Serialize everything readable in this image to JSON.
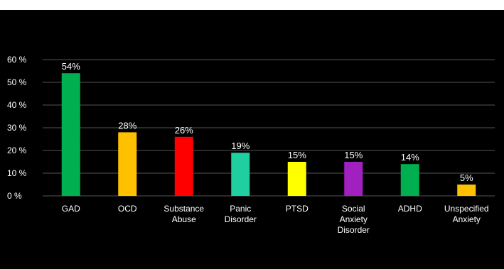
{
  "chart_data": {
    "type": "bar",
    "categories": [
      [
        "GAD"
      ],
      [
        "OCD"
      ],
      [
        "Substance",
        "Abuse"
      ],
      [
        "Panic",
        "Disorder"
      ],
      [
        "PTSD"
      ],
      [
        "Social",
        "Anxiety",
        "Disorder"
      ],
      [
        "ADHD"
      ],
      [
        "Unspecified",
        "Anxiety"
      ]
    ],
    "values": [
      54,
      28,
      26,
      19,
      15,
      15,
      14,
      5
    ],
    "data_labels": [
      "54%",
      "28%",
      "26%",
      "19%",
      "15%",
      "15%",
      "14%",
      "5%"
    ],
    "bar_colors": [
      "#00b050",
      "#ffc000",
      "#ff0000",
      "#1fcf9f",
      "#ffff00",
      "#a020c0",
      "#00b050",
      "#ffc000"
    ],
    "ylim": [
      0,
      60
    ],
    "yticks": [
      0,
      10,
      20,
      30,
      40,
      50,
      60
    ],
    "ytick_labels": [
      "0 %",
      "10 %",
      "20 %",
      "30 %",
      "40 %",
      "50 %",
      "60 %"
    ],
    "grid": true,
    "legend": "none",
    "background": "#000000",
    "gridline_color": "#555555",
    "text_color": "#ffffff"
  }
}
